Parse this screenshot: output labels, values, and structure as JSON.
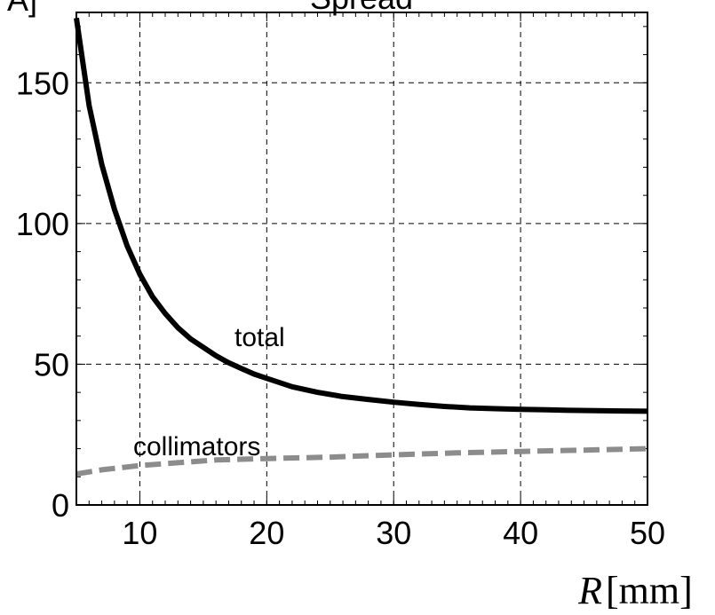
{
  "chart_data": {
    "type": "line",
    "title": "Spread",
    "ylabel_fragment": "A]",
    "xlabel": {
      "symbol": "R",
      "unit": "[mm]"
    },
    "xlim": [
      5,
      50
    ],
    "ylim": [
      0,
      175
    ],
    "x_ticks": [
      10,
      20,
      30,
      40,
      50
    ],
    "y_ticks": [
      0,
      50,
      100,
      150
    ],
    "grid": true,
    "grid_color": "#000000",
    "series": [
      {
        "name": "total",
        "color": "#000000",
        "dash": "solid",
        "x": [
          5,
          6,
          7,
          8,
          9,
          10,
          11,
          12,
          13,
          14,
          15,
          16,
          17,
          18,
          19,
          20,
          22,
          24,
          26,
          28,
          30,
          32,
          34,
          36,
          38,
          40,
          42,
          44,
          46,
          48,
          50
        ],
        "y": [
          173,
          142,
          121,
          105,
          92,
          82,
          74,
          68,
          63,
          59,
          56,
          53,
          50.5,
          48.5,
          46.5,
          45,
          42,
          40,
          38.5,
          37.5,
          36.5,
          35.7,
          35,
          34.5,
          34.2,
          34,
          33.8,
          33.6,
          33.5,
          33.4,
          33.3
        ],
        "label": "total"
      },
      {
        "name": "collimators",
        "color": "#8c8c8c",
        "dash": "dashed",
        "x": [
          5,
          7,
          10,
          13,
          16,
          20,
          25,
          30,
          35,
          40,
          45,
          50
        ],
        "y": [
          11,
          12.5,
          14,
          15,
          16,
          16.5,
          17,
          17.8,
          18.5,
          19,
          19.5,
          20
        ],
        "label": "collimators"
      }
    ]
  }
}
